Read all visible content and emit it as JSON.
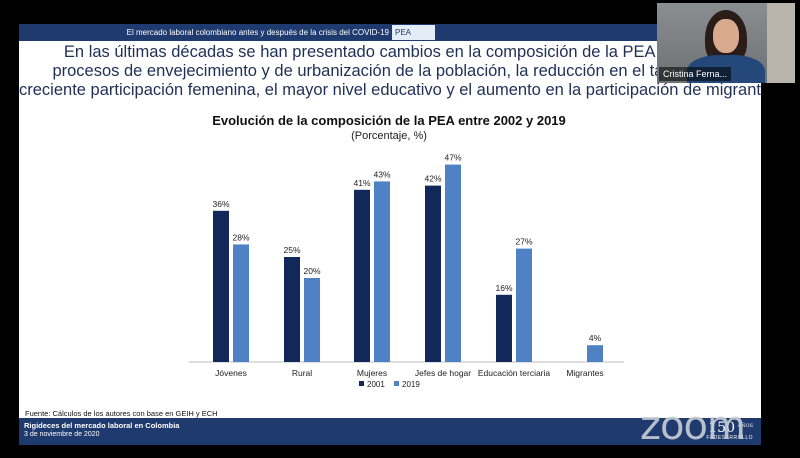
{
  "slide": {
    "topbar_title": "El mercado laboral colombiano antes y después de la crisis del COVID-19",
    "topbar_section": "PEA",
    "intro_lines": [
      "En las últimas décadas se han presentado cambios en la composición de la PEA. Se des",
      "procesos de envejecimiento y de urbanización de la población, la reducción en el tamaño de",
      "creciente participación femenina, el mayor nivel educativo y el aumento en la participación de migrantes"
    ],
    "source": "Fuente: Cálculos de los autores con base en GEIH y ECH",
    "footer_title": "Rigideces del mercado laboral en Colombia",
    "footer_date": "3 de noviembre de 2020",
    "logo_number": "150",
    "logo_anos": "AÑOS",
    "logo_name": "FEDESARROLLO"
  },
  "video": {
    "participant_name": "Cristina Ferna..."
  },
  "zoom_watermark": "zoom",
  "colors": {
    "navy": "#1f3a6e",
    "series_2001": "#12275a",
    "series_2019": "#4f82c4"
  },
  "chart_data": {
    "type": "bar",
    "title": "Evolución de la composición de la PEA entre 2002 y 2019",
    "subtitle": "(Porcentaje, %)",
    "categories": [
      "Jóvenes",
      "Rural",
      "Mujeres",
      "Jefes de hogar",
      "Educación terciaria",
      "Migrantes"
    ],
    "series": [
      {
        "name": "2001",
        "values": [
          36,
          25,
          41,
          42,
          16,
          null
        ]
      },
      {
        "name": "2019",
        "values": [
          28,
          20,
          43,
          47,
          27,
          4
        ]
      }
    ],
    "ylim": [
      0,
      50
    ],
    "legend": "bottom-center",
    "grid": false
  }
}
